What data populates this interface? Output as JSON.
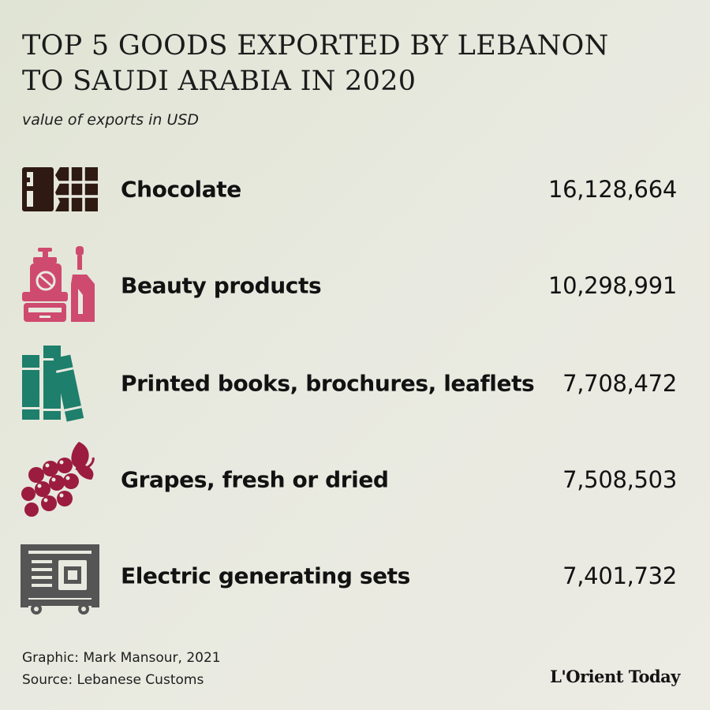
{
  "chart_data": {
    "type": "table",
    "title": "TOP 5 GOODS EXPORTED BY LEBANON\nTO SAUDI ARABIA IN 2020",
    "title_lines": [
      "TOP 5 GOODS EXPORTED BY LEBANON",
      "TO SAUDI ARABIA IN 2020"
    ],
    "subtitle": "value of exports in USD",
    "categories": [
      "Chocolate",
      "Beauty products",
      "Printed books, brochures, leaflets",
      "Grapes, fresh or dried",
      "Electric generating sets"
    ],
    "values": [
      16128664,
      10298991,
      7708472,
      7508503,
      7401732
    ],
    "value_labels": [
      "16,128,664",
      "10,298,991",
      "7,708,472",
      "7,508,503",
      "7,401,732"
    ],
    "icons": [
      "chocolate-bar-icon",
      "beauty-products-icon",
      "books-icon",
      "grapes-icon",
      "generator-icon"
    ],
    "icon_colors": [
      "#2e1a12",
      "#cf4a6f",
      "#1d7f6c",
      "#9b1c3f",
      "#555555"
    ]
  },
  "credits": {
    "graphic": "Graphic: Mark Mansour, 2021",
    "source": "Source: Lebanese Customs"
  },
  "logo": "L'Orient Today"
}
